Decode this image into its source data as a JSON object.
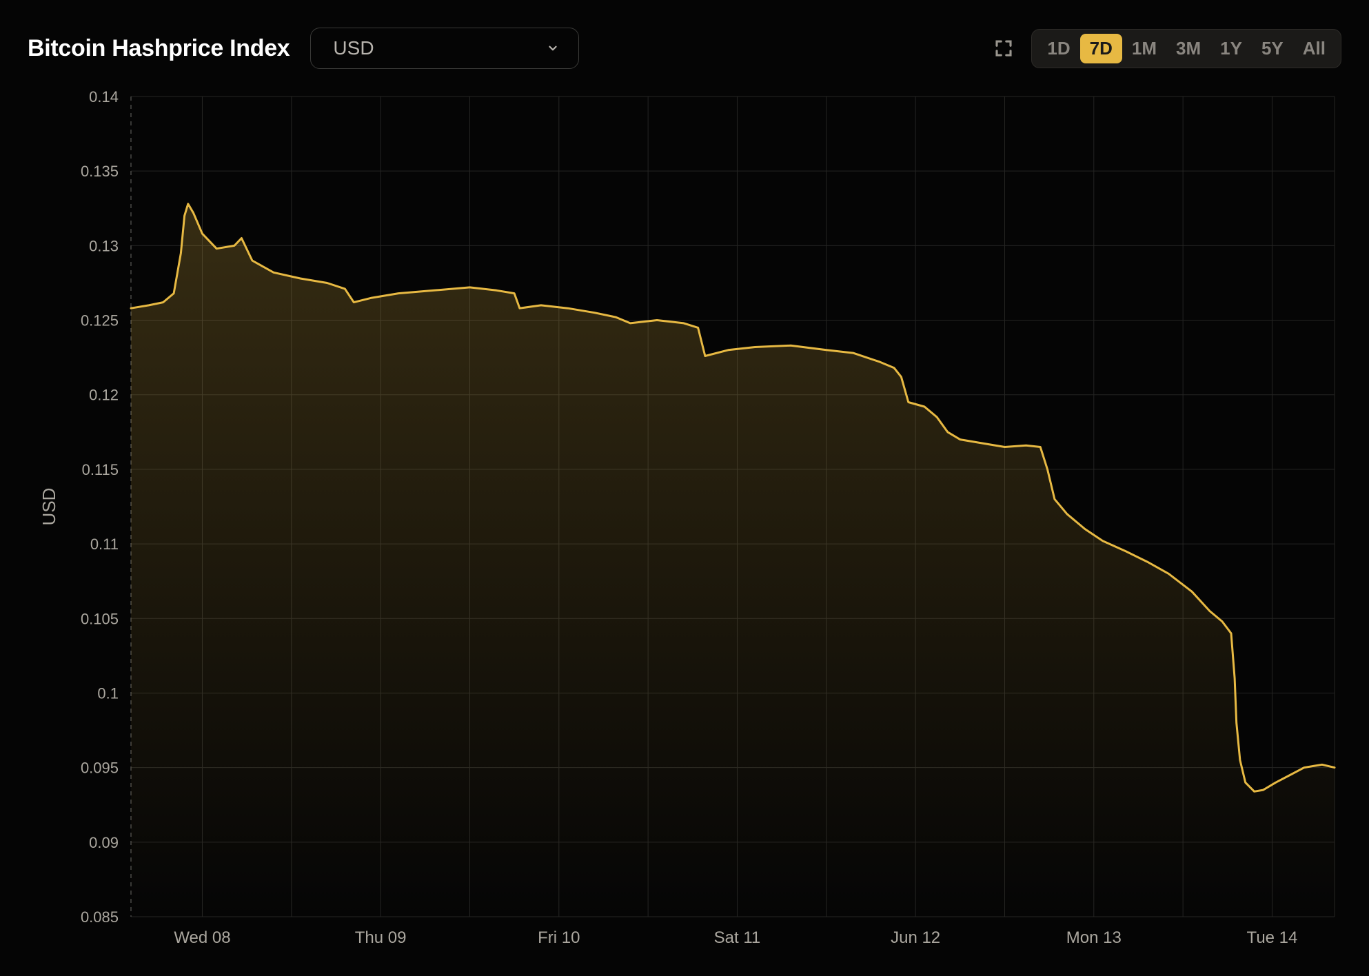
{
  "header": {
    "title": "Bitcoin Hashprice Index",
    "currency_selected": "USD"
  },
  "ranges": {
    "items": [
      "1D",
      "7D",
      "1M",
      "3M",
      "1Y",
      "5Y",
      "All"
    ],
    "active": "7D"
  },
  "chart": {
    "type": "area",
    "ylabel": "USD",
    "ylim": [
      0.085,
      0.14
    ],
    "ytick_labels": [
      "0.085",
      "0.09",
      "0.095",
      "0.1",
      "0.105",
      "0.11",
      "0.115",
      "0.12",
      "0.125",
      "0.13",
      "0.135",
      "0.14"
    ],
    "ytick_values": [
      0.085,
      0.09,
      0.095,
      0.1,
      0.105,
      0.11,
      0.115,
      0.12,
      0.125,
      0.13,
      0.135,
      0.14
    ],
    "xtick_labels": [
      "Wed 08",
      "Thu 09",
      "Fri 10",
      "Sat 11",
      "Jun 12",
      "Mon 13",
      "Tue 14"
    ],
    "xtick_positions": [
      1,
      2,
      3,
      4,
      5,
      6,
      7
    ],
    "xlim": [
      0.6,
      7.35
    ],
    "line_color": "#e7b943",
    "line_width": 3,
    "area_fill_top": "rgba(231,185,67,0.20)",
    "area_fill_bottom": "rgba(231,185,67,0.0)",
    "background_color": "#050505",
    "grid_color": "#252523",
    "first_vgrid_color": "#4a4946",
    "tick_label_color": "#aba79f",
    "tick_fontsize": 22,
    "xlabel_fontsize": 24,
    "ylabel_fontsize": 26,
    "series": [
      [
        0.6,
        0.1258
      ],
      [
        0.7,
        0.126
      ],
      [
        0.78,
        0.1262
      ],
      [
        0.84,
        0.1268
      ],
      [
        0.88,
        0.1295
      ],
      [
        0.9,
        0.132
      ],
      [
        0.92,
        0.1328
      ],
      [
        0.95,
        0.1322
      ],
      [
        1.0,
        0.1308
      ],
      [
        1.08,
        0.1298
      ],
      [
        1.18,
        0.13
      ],
      [
        1.22,
        0.1305
      ],
      [
        1.28,
        0.129
      ],
      [
        1.4,
        0.1282
      ],
      [
        1.55,
        0.1278
      ],
      [
        1.7,
        0.1275
      ],
      [
        1.8,
        0.1271
      ],
      [
        1.85,
        0.1262
      ],
      [
        1.95,
        0.1265
      ],
      [
        2.1,
        0.1268
      ],
      [
        2.3,
        0.127
      ],
      [
        2.5,
        0.1272
      ],
      [
        2.65,
        0.127
      ],
      [
        2.75,
        0.1268
      ],
      [
        2.78,
        0.1258
      ],
      [
        2.9,
        0.126
      ],
      [
        3.05,
        0.1258
      ],
      [
        3.2,
        0.1255
      ],
      [
        3.32,
        0.1252
      ],
      [
        3.4,
        0.1248
      ],
      [
        3.55,
        0.125
      ],
      [
        3.7,
        0.1248
      ],
      [
        3.78,
        0.1245
      ],
      [
        3.82,
        0.1226
      ],
      [
        3.95,
        0.123
      ],
      [
        4.1,
        0.1232
      ],
      [
        4.3,
        0.1233
      ],
      [
        4.5,
        0.123
      ],
      [
        4.65,
        0.1228
      ],
      [
        4.8,
        0.1222
      ],
      [
        4.88,
        0.1218
      ],
      [
        4.92,
        0.1212
      ],
      [
        4.96,
        0.1195
      ],
      [
        5.05,
        0.1192
      ],
      [
        5.12,
        0.1185
      ],
      [
        5.18,
        0.1175
      ],
      [
        5.25,
        0.117
      ],
      [
        5.35,
        0.1168
      ],
      [
        5.5,
        0.1165
      ],
      [
        5.62,
        0.1166
      ],
      [
        5.7,
        0.1165
      ],
      [
        5.74,
        0.115
      ],
      [
        5.78,
        0.113
      ],
      [
        5.85,
        0.112
      ],
      [
        5.95,
        0.111
      ],
      [
        6.05,
        0.1102
      ],
      [
        6.18,
        0.1095
      ],
      [
        6.3,
        0.1088
      ],
      [
        6.42,
        0.108
      ],
      [
        6.55,
        0.1068
      ],
      [
        6.65,
        0.1055
      ],
      [
        6.72,
        0.1048
      ],
      [
        6.77,
        0.104
      ],
      [
        6.79,
        0.101
      ],
      [
        6.8,
        0.098
      ],
      [
        6.82,
        0.0955
      ],
      [
        6.85,
        0.094
      ],
      [
        6.9,
        0.0934
      ],
      [
        6.95,
        0.0935
      ],
      [
        7.02,
        0.094
      ],
      [
        7.1,
        0.0945
      ],
      [
        7.18,
        0.095
      ],
      [
        7.28,
        0.0952
      ],
      [
        7.35,
        0.095
      ]
    ]
  }
}
